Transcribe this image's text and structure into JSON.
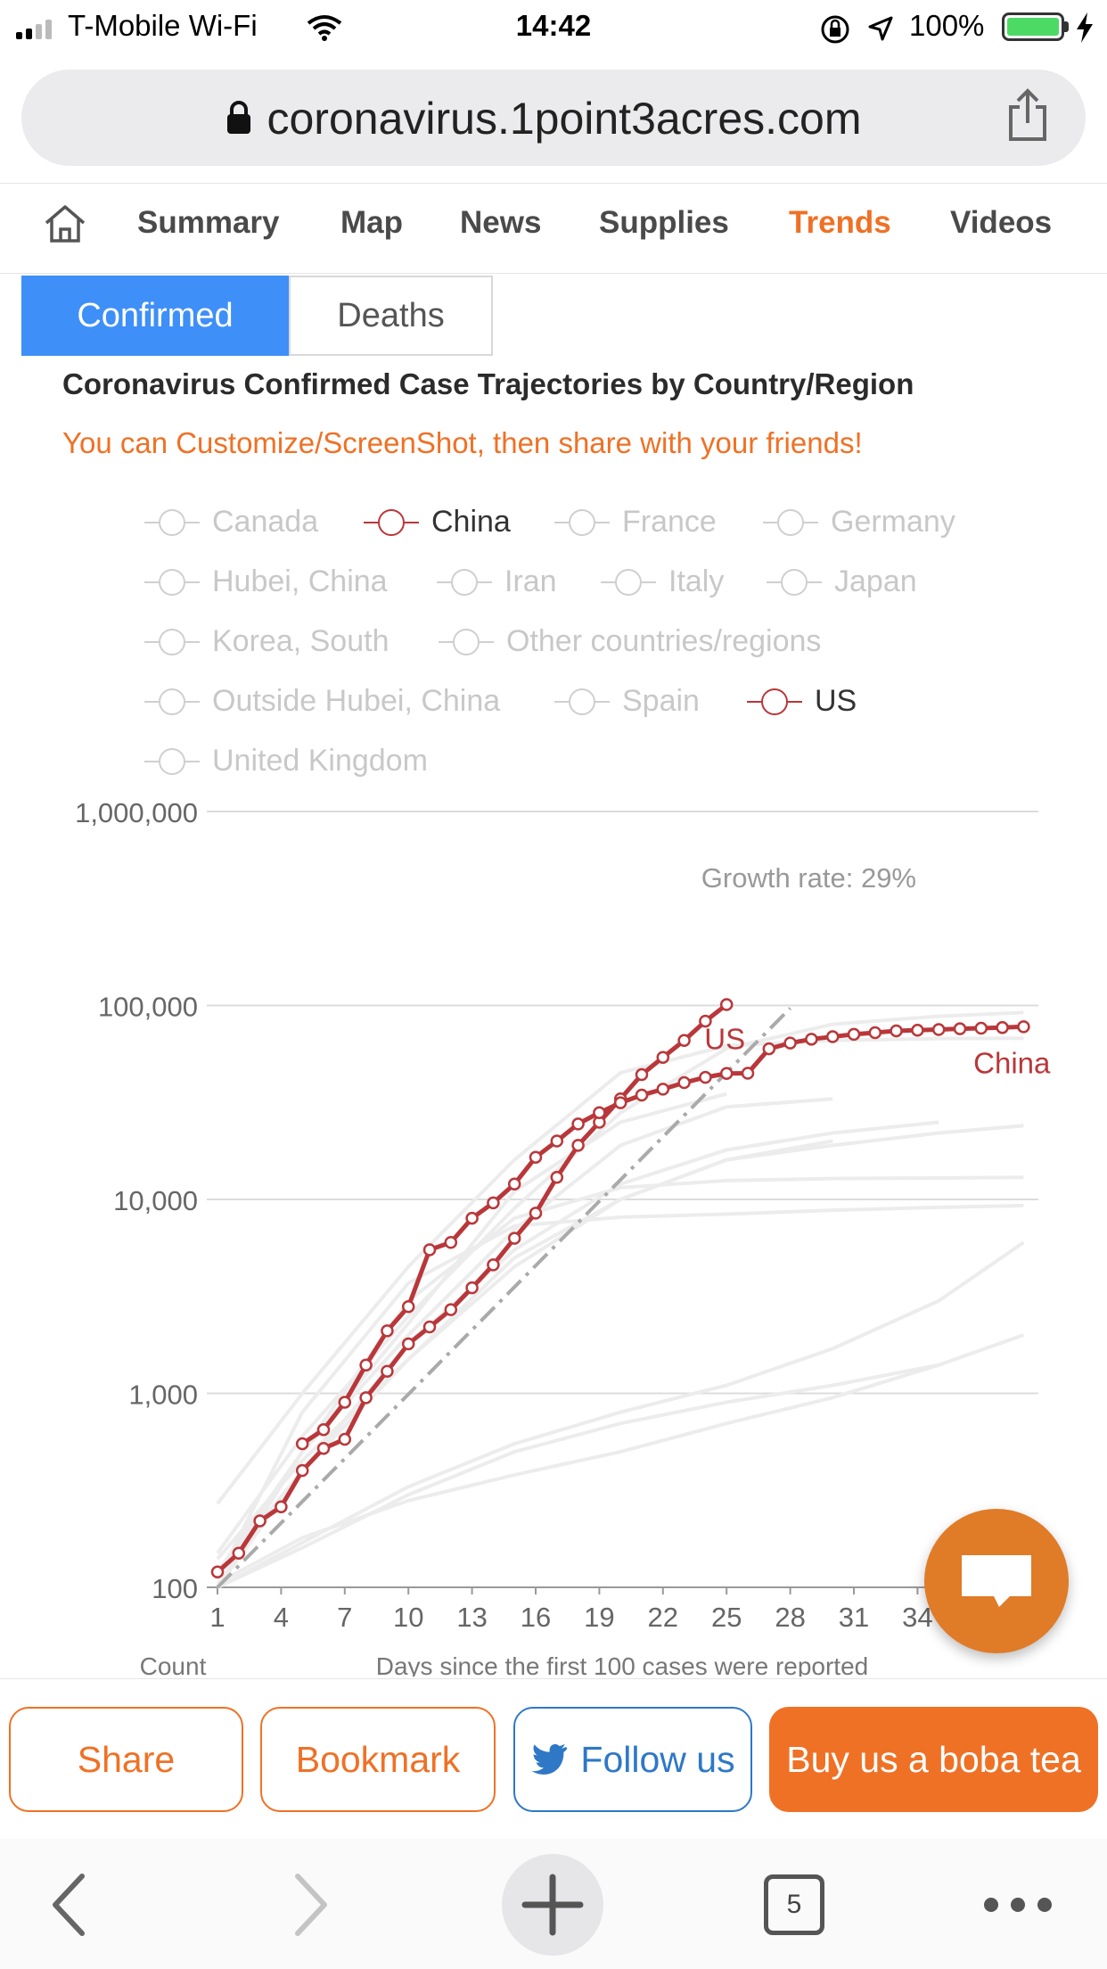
{
  "status_bar": {
    "carrier": "T-Mobile Wi-Fi",
    "time": "14:42",
    "battery": "100%"
  },
  "browser": {
    "url": "coronavirus.1point3acres.com",
    "tab_count": "5"
  },
  "nav": {
    "items": [
      "Summary",
      "Map",
      "News",
      "Supplies",
      "Trends",
      "Videos"
    ],
    "active": "Trends"
  },
  "tabs": {
    "confirmed": "Confirmed",
    "deaths": "Deaths"
  },
  "page": {
    "title": "Coronavirus Confirmed Case Trajectories by Country/Region",
    "subtitle": "You can Customize/ScreenShot, then share with your friends!"
  },
  "legend": [
    {
      "label": "Canada",
      "selected": false
    },
    {
      "label": "China",
      "selected": true
    },
    {
      "label": "France",
      "selected": false
    },
    {
      "label": "Germany",
      "selected": false
    },
    {
      "label": "Hubei, China",
      "selected": false
    },
    {
      "label": "Iran",
      "selected": false
    },
    {
      "label": "Italy",
      "selected": false
    },
    {
      "label": "Japan",
      "selected": false
    },
    {
      "label": "Korea, South",
      "selected": false
    },
    {
      "label": "Other countries/regions",
      "selected": false
    },
    {
      "label": "Outside Hubei, China",
      "selected": false
    },
    {
      "label": "Spain",
      "selected": false
    },
    {
      "label": "US",
      "selected": true
    },
    {
      "label": "United Kingdom",
      "selected": false
    }
  ],
  "chart_data": {
    "type": "line",
    "y_scale": "log",
    "ylim": [
      100,
      1000000
    ],
    "y_ticks": [
      "100",
      "1,000",
      "10,000",
      "100,000",
      "1,000,000"
    ],
    "y_tick_values": [
      100,
      1000,
      10000,
      100000,
      1000000
    ],
    "x_ticks": [
      "1",
      "4",
      "7",
      "10",
      "13",
      "16",
      "19",
      "22",
      "25",
      "28",
      "31",
      "34"
    ],
    "xlim": [
      1,
      39
    ],
    "xlabel": "Days since the first 100 cases were reported",
    "ylabel": "Count",
    "growth_line": {
      "label": "Growth rate: 29%",
      "rate": 0.29,
      "start": 100,
      "x_end": 28
    },
    "series": [
      {
        "name": "US",
        "highlight": true,
        "color": "#b9373a",
        "x": [
          1,
          2,
          3,
          4,
          5,
          6,
          7,
          8,
          9,
          10,
          11,
          12,
          13,
          14,
          15,
          16,
          17,
          18,
          19,
          20,
          21,
          22,
          23,
          24,
          25
        ],
        "y": [
          120,
          150,
          220,
          260,
          400,
          520,
          580,
          950,
          1300,
          1800,
          2200,
          2700,
          3500,
          4600,
          6300,
          8500,
          13000,
          19000,
          25000,
          33000,
          44000,
          54000,
          66000,
          83000,
          101000
        ]
      },
      {
        "name": "China",
        "highlight": true,
        "color": "#b9373a",
        "x": [
          5,
          6,
          7,
          8,
          9,
          10,
          11,
          12,
          13,
          14,
          15,
          16,
          17,
          18,
          19,
          20,
          21,
          22,
          23,
          24,
          25,
          26,
          27,
          28,
          29,
          30,
          31,
          32,
          33,
          34,
          35,
          36,
          37,
          38,
          39
        ],
        "y": [
          550,
          650,
          900,
          1400,
          2100,
          2800,
          5500,
          6000,
          8000,
          9600,
          12000,
          16500,
          20000,
          24500,
          28000,
          31500,
          34500,
          37000,
          40000,
          42600,
          44600,
          44700,
          59800,
          64000,
          67000,
          69000,
          71000,
          72400,
          74000,
          74500,
          75100,
          75800,
          76300,
          76900,
          77700
        ]
      },
      {
        "name": "Italy",
        "highlight": false,
        "x": [
          1,
          5,
          10,
          15,
          20,
          25,
          30,
          35,
          39
        ],
        "y": [
          150,
          600,
          2500,
          9000,
          28000,
          60000,
          80000,
          88000,
          92000
        ]
      },
      {
        "name": "Spain",
        "highlight": false,
        "x": [
          1,
          5,
          10,
          15,
          20,
          25
        ],
        "y": [
          110,
          500,
          2300,
          11000,
          25000,
          35000
        ]
      },
      {
        "name": "Iran",
        "highlight": false,
        "x": [
          1,
          5,
          10,
          15,
          20,
          25,
          30,
          35,
          39
        ],
        "y": [
          140,
          450,
          1500,
          5000,
          10000,
          16000,
          19000,
          22000,
          24000
        ]
      },
      {
        "name": "Korea, South",
        "highlight": false,
        "x": [
          1,
          5,
          10,
          15,
          20,
          25,
          30,
          35,
          39
        ],
        "y": [
          110,
          800,
          3700,
          7300,
          8100,
          8400,
          8800,
          9100,
          9300
        ]
      },
      {
        "name": "Hubei, China",
        "highlight": false,
        "x": [
          1,
          5,
          10,
          15,
          20,
          25,
          30,
          35,
          39
        ],
        "y": [
          270,
          1000,
          4500,
          16000,
          45000,
          62000,
          66000,
          67500,
          67800
        ]
      },
      {
        "name": "Outside Hubei, China",
        "highlight": false,
        "x": [
          1,
          5,
          10,
          15,
          20,
          25,
          30,
          35,
          39
        ],
        "y": [
          100,
          500,
          3000,
          8000,
          11500,
          12500,
          12800,
          12900,
          13000
        ]
      },
      {
        "name": "Germany",
        "highlight": false,
        "x": [
          1,
          5,
          10,
          15,
          20,
          25,
          30
        ],
        "y": [
          120,
          500,
          2000,
          7000,
          19000,
          30000,
          33000
        ]
      },
      {
        "name": "France",
        "highlight": false,
        "x": [
          1,
          5,
          10,
          15,
          20,
          25,
          30,
          35
        ],
        "y": [
          100,
          400,
          1800,
          5500,
          12000,
          18000,
          22000,
          25000
        ]
      },
      {
        "name": "Japan",
        "highlight": false,
        "x": [
          1,
          5,
          10,
          15,
          20,
          25,
          30,
          35,
          39
        ],
        "y": [
          105,
          180,
          280,
          380,
          500,
          700,
          950,
          1400,
          2000
        ]
      },
      {
        "name": "United Kingdom",
        "highlight": false,
        "x": [
          1,
          5,
          10,
          15,
          20,
          25,
          30
        ],
        "y": [
          115,
          400,
          1500,
          4500,
          10000,
          16000,
          20000
        ]
      },
      {
        "name": "Canada",
        "highlight": false,
        "x": [
          1,
          5,
          10,
          15,
          20,
          25,
          30,
          35,
          39
        ],
        "y": [
          100,
          170,
          330,
          550,
          800,
          1100,
          1700,
          3000,
          6000
        ]
      },
      {
        "name": "Other countries/regions",
        "highlight": false,
        "x": [
          1,
          5,
          10,
          15,
          20,
          25,
          30,
          35
        ],
        "y": [
          100,
          160,
          300,
          500,
          700,
          900,
          1100,
          1400
        ]
      }
    ]
  },
  "actions": {
    "share": "Share",
    "bookmark": "Bookmark",
    "follow": "Follow us",
    "boba": "Buy us a boba tea"
  }
}
